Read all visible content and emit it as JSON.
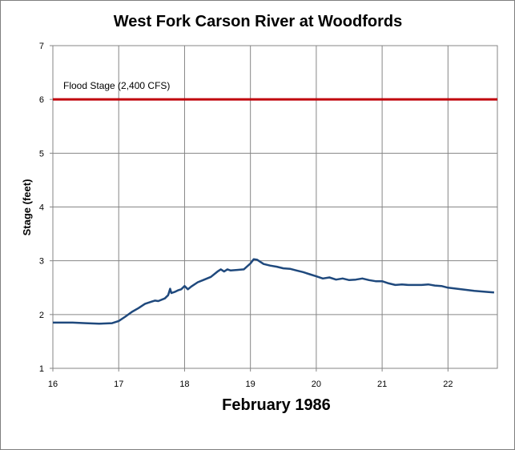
{
  "chart_data": {
    "type": "line",
    "title": "West Fork Carson River at Woodfords",
    "xlabel": "February 1986",
    "ylabel": "Stage (feet)",
    "xlim": [
      16,
      22.75
    ],
    "ylim": [
      1,
      7
    ],
    "x_ticks": [
      "16",
      "17",
      "18",
      "19",
      "20",
      "21",
      "22"
    ],
    "y_ticks": [
      "1",
      "2",
      "3",
      "4",
      "5",
      "6",
      "7"
    ],
    "grid": true,
    "legend": "none",
    "series": [
      {
        "color": "#1f497d",
        "x": [
          16.0,
          16.3,
          16.5,
          16.7,
          16.9,
          17.0,
          17.1,
          17.2,
          17.3,
          17.4,
          17.5,
          17.55,
          17.6,
          17.7,
          17.75,
          17.78,
          17.8,
          17.85,
          17.9,
          17.95,
          18.0,
          18.05,
          18.1,
          18.2,
          18.3,
          18.4,
          18.5,
          18.55,
          18.6,
          18.65,
          18.7,
          18.8,
          18.9,
          19.0,
          19.05,
          19.1,
          19.2,
          19.3,
          19.4,
          19.5,
          19.6,
          19.7,
          19.8,
          19.9,
          20.0,
          20.1,
          20.2,
          20.3,
          20.4,
          20.5,
          20.6,
          20.7,
          20.8,
          20.9,
          21.0,
          21.1,
          21.2,
          21.3,
          21.4,
          21.5,
          21.6,
          21.7,
          21.8,
          21.9,
          22.0,
          22.2,
          22.4,
          22.6,
          22.7
        ],
        "values": [
          1.85,
          1.85,
          1.84,
          1.83,
          1.84,
          1.88,
          1.96,
          2.05,
          2.12,
          2.2,
          2.24,
          2.26,
          2.25,
          2.3,
          2.36,
          2.48,
          2.4,
          2.42,
          2.45,
          2.47,
          2.53,
          2.47,
          2.52,
          2.6,
          2.65,
          2.7,
          2.8,
          2.84,
          2.8,
          2.84,
          2.82,
          2.83,
          2.84,
          2.95,
          3.03,
          3.02,
          2.94,
          2.91,
          2.89,
          2.86,
          2.85,
          2.82,
          2.79,
          2.75,
          2.71,
          2.67,
          2.69,
          2.65,
          2.67,
          2.64,
          2.65,
          2.67,
          2.64,
          2.62,
          2.62,
          2.58,
          2.55,
          2.56,
          2.55,
          2.55,
          2.55,
          2.56,
          2.54,
          2.53,
          2.5,
          2.47,
          2.44,
          2.42,
          2.41
        ]
      }
    ],
    "reference_lines": [
      {
        "y": 6,
        "color": "#c0000b",
        "label": "Flood Stage (2,400 CFS)"
      }
    ]
  }
}
